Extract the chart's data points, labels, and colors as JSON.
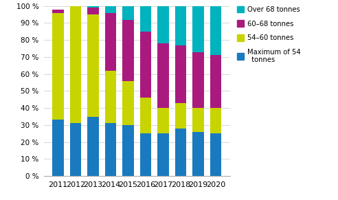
{
  "years": [
    "2011",
    "2012",
    "2013",
    "2014",
    "2015",
    "2016",
    "2017",
    "2018",
    "2019",
    "2020"
  ],
  "max54": [
    33,
    31,
    35,
    31,
    30,
    25,
    25,
    28,
    26,
    25
  ],
  "s54_60": [
    63,
    69,
    60,
    31,
    26,
    21,
    15,
    15,
    14,
    15
  ],
  "s60_68": [
    2,
    0,
    4,
    34,
    36,
    39,
    38,
    34,
    33,
    31
  ],
  "over68": [
    0,
    0,
    1,
    4,
    8,
    15,
    22,
    23,
    27,
    29
  ],
  "colors": {
    "max54": "#1a7abf",
    "s54_60": "#c8d400",
    "s60_68": "#aa1a7e",
    "over68": "#00b3be"
  },
  "ylabel_ticks": [
    "0 %",
    "10 %",
    "20 %",
    "30 %",
    "40 %",
    "50 %",
    "60 %",
    "70 %",
    "80 %",
    "90 %",
    "100 %"
  ],
  "ylim": [
    0,
    100
  ],
  "bar_width": 0.65
}
